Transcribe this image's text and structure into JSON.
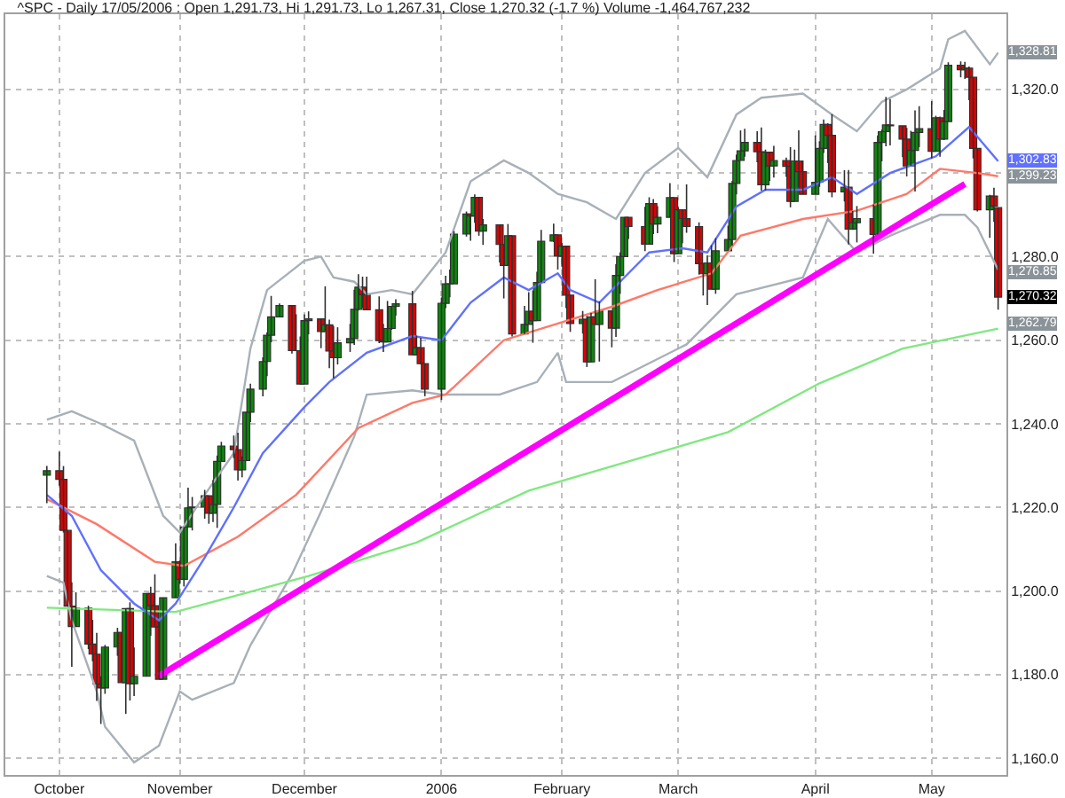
{
  "chart_data": {
    "type": "candlestick",
    "title": "^SPC - Daily 17/05/2006 : Open 1,291.73, Hi 1,291.73, Lo 1,267.31, Close 1,270.32 (-1.7 %) Volume -1,464,767,232",
    "x": [
      "2005-09-30",
      "2005-10-03",
      "2005-10-04",
      "2005-10-05",
      "2005-10-06",
      "2005-10-07",
      "2005-10-10",
      "2005-10-11",
      "2005-10-12",
      "2005-10-13",
      "2005-10-14",
      "2005-10-17",
      "2005-10-18",
      "2005-10-19",
      "2005-10-20",
      "2005-10-21",
      "2005-10-24",
      "2005-10-25",
      "2005-10-26",
      "2005-10-27",
      "2005-10-28",
      "2005-10-31",
      "2005-11-01",
      "2005-11-02",
      "2005-11-03",
      "2005-11-04",
      "2005-11-07",
      "2005-11-08",
      "2005-11-09",
      "2005-11-10",
      "2005-11-11",
      "2005-11-14",
      "2005-11-15",
      "2005-11-16",
      "2005-11-17",
      "2005-11-18",
      "2005-11-21",
      "2005-11-22",
      "2005-11-23",
      "2005-11-25",
      "2005-11-28",
      "2005-11-29",
      "2005-11-30",
      "2005-12-01",
      "2005-12-02",
      "2005-12-05",
      "2005-12-06",
      "2005-12-07",
      "2005-12-08",
      "2005-12-09",
      "2005-12-12",
      "2005-12-13",
      "2005-12-14",
      "2005-12-15",
      "2005-12-16",
      "2005-12-19",
      "2005-12-20",
      "2005-12-21",
      "2005-12-22",
      "2005-12-23",
      "2005-12-27",
      "2005-12-28",
      "2005-12-29",
      "2005-12-30",
      "2006-01-03",
      "2006-01-04",
      "2006-01-05",
      "2006-01-06",
      "2006-01-09",
      "2006-01-10",
      "2006-01-11",
      "2006-01-12",
      "2006-01-13",
      "2006-01-17",
      "2006-01-18",
      "2006-01-19",
      "2006-01-20",
      "2006-01-23",
      "2006-01-24",
      "2006-01-25",
      "2006-01-26",
      "2006-01-27",
      "2006-01-30",
      "2006-01-31",
      "2006-02-01",
      "2006-02-02",
      "2006-02-03",
      "2006-02-06",
      "2006-02-07",
      "2006-02-08",
      "2006-02-09",
      "2006-02-10",
      "2006-02-13",
      "2006-02-14",
      "2006-02-15",
      "2006-02-16",
      "2006-02-17",
      "2006-02-21",
      "2006-02-22",
      "2006-02-23",
      "2006-02-24",
      "2006-02-27",
      "2006-02-28",
      "2006-03-01",
      "2006-03-02",
      "2006-03-03",
      "2006-03-06",
      "2006-03-07",
      "2006-03-08",
      "2006-03-09",
      "2006-03-10",
      "2006-03-13",
      "2006-03-14",
      "2006-03-15",
      "2006-03-16",
      "2006-03-17",
      "2006-03-20",
      "2006-03-21",
      "2006-03-22",
      "2006-03-23",
      "2006-03-24",
      "2006-03-27",
      "2006-03-28",
      "2006-03-29",
      "2006-03-30",
      "2006-03-31",
      "2006-04-03",
      "2006-04-04",
      "2006-04-05",
      "2006-04-06",
      "2006-04-07",
      "2006-04-10",
      "2006-04-11",
      "2006-04-12",
      "2006-04-13",
      "2006-04-17",
      "2006-04-18",
      "2006-04-19",
      "2006-04-20",
      "2006-04-21",
      "2006-04-24",
      "2006-04-25",
      "2006-04-26",
      "2006-04-27",
      "2006-04-28",
      "2006-05-01",
      "2006-05-02",
      "2006-05-03",
      "2006-05-04",
      "2006-05-05",
      "2006-05-08",
      "2006-05-09",
      "2006-05-10",
      "2006-05-11",
      "2006-05-12",
      "2006-05-15",
      "2006-05-16",
      "2006-05-17"
    ],
    "ohlc": [
      [
        1227.7,
        1229.9,
        1221.0,
        1228.8
      ],
      [
        1228.8,
        1233.3,
        1225.2,
        1226.7
      ],
      [
        1226.7,
        1229.9,
        1214.0,
        1214.5
      ],
      [
        1214.5,
        1214.5,
        1196.3,
        1196.4
      ],
      [
        1196.4,
        1202.1,
        1181.9,
        1191.5
      ],
      [
        1191.5,
        1199.7,
        1191.5,
        1195.9
      ],
      [
        1195.9,
        1196.5,
        1186.1,
        1187.3
      ],
      [
        1187.3,
        1193.1,
        1183.2,
        1184.9
      ],
      [
        1184.9,
        1190.0,
        1173.7,
        1177.7
      ],
      [
        1177.7,
        1179.6,
        1168.2,
        1176.8
      ],
      [
        1176.8,
        1187.1,
        1175.4,
        1186.6
      ],
      [
        1186.6,
        1191.2,
        1184.5,
        1190.1
      ],
      [
        1190.1,
        1190.1,
        1178.1,
        1178.1
      ],
      [
        1178.1,
        1195.8,
        1170.6,
        1195.8
      ],
      [
        1195.8,
        1197.3,
        1173.8,
        1177.8
      ],
      [
        1177.8,
        1186.5,
        1174.9,
        1179.6
      ],
      [
        1179.6,
        1199.4,
        1179.6,
        1199.4
      ],
      [
        1199.4,
        1201.0,
        1189.3,
        1196.5
      ],
      [
        1196.5,
        1204.0,
        1191.4,
        1191.4
      ],
      [
        1191.4,
        1192.7,
        1178.9,
        1178.9
      ],
      [
        1178.9,
        1198.4,
        1178.9,
        1198.4
      ],
      [
        1198.4,
        1211.4,
        1198.4,
        1207.0
      ],
      [
        1207.0,
        1207.3,
        1201.7,
        1202.8
      ],
      [
        1202.8,
        1215.3,
        1201.1,
        1215.3
      ],
      [
        1215.3,
        1224.7,
        1215.3,
        1219.9
      ],
      [
        1219.9,
        1222.5,
        1214.5,
        1220.1
      ],
      [
        1220.1,
        1224.2,
        1217.3,
        1222.8
      ],
      [
        1222.8,
        1222.8,
        1216.1,
        1218.6
      ],
      [
        1218.6,
        1226.6,
        1216.5,
        1220.7
      ],
      [
        1220.7,
        1232.4,
        1215.1,
        1231.0
      ],
      [
        1231.0,
        1235.7,
        1231.0,
        1234.7
      ],
      [
        1234.7,
        1237.2,
        1231.8,
        1233.8
      ],
      [
        1233.8,
        1237.9,
        1226.4,
        1229.0
      ],
      [
        1229.0,
        1232.2,
        1227.2,
        1231.2
      ],
      [
        1231.2,
        1242.9,
        1231.2,
        1242.8
      ],
      [
        1242.8,
        1249.6,
        1240.4,
        1248.3
      ],
      [
        1248.3,
        1255.9,
        1246.6,
        1254.9
      ],
      [
        1254.9,
        1261.9,
        1251.4,
        1261.2
      ],
      [
        1261.2,
        1270.6,
        1259.5,
        1265.6
      ],
      [
        1265.6,
        1268.8,
        1265.6,
        1268.3
      ],
      [
        1268.3,
        1268.4,
        1256.8,
        1257.5
      ],
      [
        1257.5,
        1266.2,
        1257.5,
        1257.5
      ],
      [
        1257.5,
        1260.9,
        1249.4,
        1249.5
      ],
      [
        1249.5,
        1266.2,
        1249.5,
        1264.7
      ],
      [
        1264.7,
        1266.9,
        1261.4,
        1265.1
      ],
      [
        1265.1,
        1265.1,
        1258.1,
        1262.1
      ],
      [
        1262.1,
        1272.9,
        1262.1,
        1263.7
      ],
      [
        1263.7,
        1264.9,
        1253.3,
        1257.4
      ],
      [
        1257.4,
        1263.4,
        1250.9,
        1255.8
      ],
      [
        1255.8,
        1263.1,
        1254.2,
        1259.4
      ],
      [
        1259.4,
        1263.9,
        1257.2,
        1260.4
      ],
      [
        1260.4,
        1272.1,
        1258.9,
        1267.4
      ],
      [
        1267.4,
        1275.8,
        1267.1,
        1272.7
      ],
      [
        1272.7,
        1275.2,
        1267.7,
        1270.9
      ],
      [
        1270.9,
        1275.2,
        1267.3,
        1267.3
      ],
      [
        1267.3,
        1270.5,
        1259.3,
        1259.9
      ],
      [
        1259.9,
        1263.9,
        1257.2,
        1259.6
      ],
      [
        1259.6,
        1269.4,
        1259.6,
        1262.8
      ],
      [
        1262.8,
        1268.2,
        1262.5,
        1268.1
      ],
      [
        1268.1,
        1269.8,
        1265.9,
        1268.7
      ],
      [
        1268.7,
        1271.8,
        1256.5,
        1256.5
      ],
      [
        1256.5,
        1261.1,
        1256.5,
        1258.2
      ],
      [
        1258.2,
        1260.6,
        1254.2,
        1254.4
      ],
      [
        1254.4,
        1254.4,
        1246.6,
        1248.3
      ],
      [
        1248.3,
        1270.2,
        1245.7,
        1268.8
      ],
      [
        1268.8,
        1275.4,
        1267.7,
        1273.5
      ],
      [
        1273.5,
        1276.9,
        1270.3,
        1273.5
      ],
      [
        1273.5,
        1286.1,
        1273.5,
        1285.4
      ],
      [
        1285.4,
        1290.8,
        1284.8,
        1290.2
      ],
      [
        1290.2,
        1290.2,
        1283.8,
        1289.7
      ],
      [
        1289.7,
        1294.9,
        1288.1,
        1294.2
      ],
      [
        1294.2,
        1294.2,
        1285.0,
        1286.1
      ],
      [
        1286.1,
        1289.0,
        1282.8,
        1287.6
      ],
      [
        1287.6,
        1287.6,
        1278.6,
        1282.9
      ],
      [
        1282.9,
        1282.9,
        1270.0,
        1277.9
      ],
      [
        1277.9,
        1287.8,
        1277.9,
        1285.0
      ],
      [
        1285.0,
        1285.0,
        1260.9,
        1261.5
      ],
      [
        1261.5,
        1268.2,
        1261.5,
        1263.8
      ],
      [
        1263.8,
        1271.5,
        1263.8,
        1266.9
      ],
      [
        1266.9,
        1271.9,
        1259.4,
        1264.7
      ],
      [
        1264.7,
        1276.4,
        1264.7,
        1273.8
      ],
      [
        1273.8,
        1286.4,
        1273.8,
        1283.7
      ],
      [
        1283.7,
        1287.9,
        1283.5,
        1285.2
      ],
      [
        1285.2,
        1285.2,
        1276.9,
        1280.1
      ],
      [
        1280.1,
        1283.3,
        1277.6,
        1282.5
      ],
      [
        1282.5,
        1282.5,
        1267.7,
        1270.8
      ],
      [
        1270.8,
        1270.8,
        1262.0,
        1264.0
      ],
      [
        1264.0,
        1267.0,
        1261.6,
        1265.0
      ],
      [
        1265.0,
        1265.8,
        1253.6,
        1254.8
      ],
      [
        1254.8,
        1266.5,
        1254.8,
        1265.6
      ],
      [
        1265.6,
        1274.6,
        1263.8,
        1263.8
      ],
      [
        1263.8,
        1269.3,
        1254.9,
        1267.0
      ],
      [
        1267.0,
        1267.0,
        1258.3,
        1262.9
      ],
      [
        1262.9,
        1278.2,
        1260.8,
        1275.5
      ],
      [
        1275.5,
        1281.0,
        1271.1,
        1280.0
      ],
      [
        1280.0,
        1289.4,
        1280.0,
        1289.4
      ],
      [
        1289.4,
        1289.5,
        1284.2,
        1287.2
      ],
      [
        1287.2,
        1291.9,
        1281.3,
        1283.0
      ],
      [
        1283.0,
        1294.2,
        1283.0,
        1292.7
      ],
      [
        1292.7,
        1293.8,
        1285.4,
        1287.8
      ],
      [
        1287.8,
        1292.1,
        1285.6,
        1289.4
      ],
      [
        1289.4,
        1297.6,
        1289.4,
        1294.1
      ],
      [
        1294.1,
        1294.1,
        1278.7,
        1280.7
      ],
      [
        1280.7,
        1291.8,
        1280.7,
        1291.2
      ],
      [
        1291.2,
        1291.2,
        1283.2,
        1289.1
      ],
      [
        1289.1,
        1297.3,
        1285.7,
        1287.2
      ],
      [
        1287.2,
        1288.2,
        1275.7,
        1278.3
      ],
      [
        1278.3,
        1278.3,
        1270.7,
        1275.9
      ],
      [
        1275.9,
        1280.3,
        1268.4,
        1278.5
      ],
      [
        1278.5,
        1282.7,
        1272.2,
        1272.2
      ],
      [
        1272.2,
        1284.4,
        1271.1,
        1281.4
      ],
      [
        1281.4,
        1287.4,
        1281.4,
        1284.1
      ],
      [
        1284.1,
        1298.1,
        1282.7,
        1297.5
      ],
      [
        1297.5,
        1304.4,
        1294.9,
        1303.0
      ],
      [
        1303.0,
        1310.2,
        1303.0,
        1305.3
      ],
      [
        1305.3,
        1310.6,
        1303.9,
        1307.3
      ],
      [
        1307.3,
        1310.0,
        1302.6,
        1305.1
      ],
      [
        1305.1,
        1310.9,
        1295.8,
        1297.2
      ],
      [
        1297.2,
        1305.6,
        1295.8,
        1305.0
      ],
      [
        1305.0,
        1305.0,
        1298.1,
        1301.7
      ],
      [
        1301.7,
        1306.5,
        1298.9,
        1303.0
      ],
      [
        1303.0,
        1303.7,
        1299.1,
        1301.6
      ],
      [
        1301.6,
        1306.2,
        1291.8,
        1293.2
      ],
      [
        1293.2,
        1305.6,
        1293.2,
        1302.9
      ],
      [
        1302.9,
        1310.2,
        1296.7,
        1300.3
      ],
      [
        1300.3,
        1303.0,
        1294.9,
        1294.9
      ],
      [
        1294.9,
        1309.0,
        1294.9,
        1297.8
      ],
      [
        1297.8,
        1307.6,
        1296.7,
        1305.9
      ],
      [
        1305.9,
        1312.8,
        1304.8,
        1311.6
      ],
      [
        1311.6,
        1311.9,
        1302.4,
        1309.0
      ],
      [
        1309.0,
        1314.1,
        1294.2,
        1295.5
      ],
      [
        1295.5,
        1300.7,
        1293.2,
        1296.6
      ],
      [
        1296.6,
        1300.7,
        1282.9,
        1286.6
      ],
      [
        1286.6,
        1290.9,
        1286.4,
        1288.1
      ],
      [
        1288.1,
        1292.1,
        1283.4,
        1289.1
      ],
      [
        1289.1,
        1292.5,
        1280.7,
        1285.3
      ],
      [
        1285.3,
        1309.0,
        1285.3,
        1307.3
      ],
      [
        1307.3,
        1310.4,
        1302.8,
        1309.9
      ],
      [
        1309.9,
        1318.2,
        1306.4,
        1311.5
      ],
      [
        1311.5,
        1317.7,
        1306.6,
        1311.3
      ],
      [
        1311.3,
        1311.3,
        1303.8,
        1308.1
      ],
      [
        1308.1,
        1310.8,
        1299.2,
        1301.7
      ],
      [
        1301.7,
        1310.1,
        1301.7,
        1305.4
      ],
      [
        1305.4,
        1315.0,
        1295.6,
        1309.7
      ],
      [
        1309.7,
        1316.0,
        1306.2,
        1310.6
      ],
      [
        1310.6,
        1317.2,
        1303.5,
        1305.2
      ],
      [
        1305.2,
        1313.7,
        1305.2,
        1313.2
      ],
      [
        1313.2,
        1313.5,
        1303.9,
        1308.1
      ],
      [
        1308.1,
        1315.1,
        1307.9,
        1312.3
      ],
      [
        1312.3,
        1326.5,
        1312.3,
        1325.8
      ],
      [
        1325.8,
        1326.7,
        1322.9,
        1324.7
      ],
      [
        1324.7,
        1326.6,
        1322.5,
        1325.1
      ],
      [
        1325.1,
        1325.5,
        1317.4,
        1322.9
      ],
      [
        1322.9,
        1322.9,
        1303.5,
        1305.9
      ],
      [
        1305.9,
        1305.9,
        1290.8,
        1291.2
      ],
      [
        1291.2,
        1294.8,
        1284.5,
        1294.5
      ],
      [
        1294.5,
        1296.5,
        1288.3,
        1292.1
      ],
      [
        1291.73,
        1291.73,
        1267.31,
        1270.32
      ]
    ],
    "series": [
      {
        "type": "line",
        "color": "#a8b0b8",
        "x": [
          "2005-09-30",
          "2005-10-06",
          "2005-10-13",
          "2005-10-21",
          "2005-10-28",
          "2005-11-01",
          "2005-11-07",
          "2005-11-14",
          "2005-11-18",
          "2005-11-22",
          "2005-12-01",
          "2005-12-05",
          "2005-12-08",
          "2005-12-13",
          "2005-12-16",
          "2005-12-22",
          "2005-12-27",
          "2006-01-04",
          "2006-01-10",
          "2006-01-18",
          "2006-01-24",
          "2006-01-31",
          "2006-02-07",
          "2006-02-14",
          "2006-02-21",
          "2006-03-01",
          "2006-03-08",
          "2006-03-15",
          "2006-03-21",
          "2006-03-31",
          "2006-04-07",
          "2006-04-13",
          "2006-04-19",
          "2006-04-25",
          "2006-05-03",
          "2006-05-05",
          "2006-05-09",
          "2006-05-15",
          "2006-05-17"
        ],
        "values": [
          1241,
          1243,
          1240,
          1236,
          1218,
          1214,
          1223,
          1233,
          1258,
          1272,
          1279,
          1280,
          1275,
          1274,
          1271,
          1272,
          1271,
          1281,
          1298,
          1303,
          1300,
          1295,
          1293,
          1289,
          1300,
          1306,
          1299,
          1314,
          1318,
          1319,
          1314,
          1310,
          1317,
          1320,
          1325,
          1332,
          1334,
          1326,
          1328.81
        ],
        "value_labels": [
          null,
          null,
          null,
          null,
          null,
          null,
          null,
          null,
          null,
          null,
          null,
          null,
          null,
          null,
          null,
          null,
          null,
          null,
          null,
          null,
          null,
          null,
          null,
          null,
          null,
          null,
          null,
          null,
          null,
          null,
          null,
          null,
          null,
          null,
          null,
          null,
          null,
          null,
          "1,328.81"
        ]
      },
      {
        "type": "line",
        "color": "#a8b0b8",
        "x": [
          "2005-09-30",
          "2005-10-04",
          "2005-10-06",
          "2005-10-12",
          "2005-10-14",
          "2005-10-21",
          "2005-10-27",
          "2005-11-01",
          "2005-11-04",
          "2005-11-14",
          "2005-11-18",
          "2005-11-28",
          "2005-12-05",
          "2005-12-13",
          "2005-12-16",
          "2005-12-27",
          "2006-01-03",
          "2006-01-17",
          "2006-01-26",
          "2006-01-31",
          "2006-02-02",
          "2006-02-13",
          "2006-02-21",
          "2006-03-03",
          "2006-03-15",
          "2006-03-31",
          "2006-04-06",
          "2006-04-13",
          "2006-04-21",
          "2006-05-03",
          "2006-05-09",
          "2006-05-12",
          "2006-05-17"
        ],
        "values": [
          1203.6,
          1202,
          1193,
          1176,
          1167.5,
          1159,
          1163,
          1176,
          1174,
          1178,
          1187,
          1204,
          1219,
          1237,
          1247,
          1248,
          1247,
          1247,
          1250,
          1257,
          1250,
          1250,
          1254,
          1259,
          1271,
          1275,
          1289,
          1281,
          1285,
          1290,
          1290,
          1287,
          1276.85
        ],
        "value_labels": [
          null,
          null,
          null,
          null,
          null,
          null,
          null,
          null,
          null,
          null,
          null,
          null,
          null,
          null,
          null,
          null,
          null,
          null,
          null,
          null,
          null,
          null,
          null,
          null,
          null,
          null,
          null,
          null,
          null,
          null,
          null,
          null,
          "1,276.85"
        ]
      },
      {
        "type": "line",
        "color": "#80e880",
        "x": [
          "2005-09-30",
          "2005-10-31",
          "2005-12-02",
          "2005-12-28",
          "2006-01-24",
          "2006-03-13",
          "2006-04-04",
          "2006-04-24",
          "2006-05-17"
        ],
        "values": [
          1196,
          1195,
          1203.6,
          1211.6,
          1224,
          1238,
          1249.7,
          1258,
          1262.79
        ],
        "value_labels": [
          null,
          null,
          null,
          null,
          null,
          null,
          null,
          null,
          "1,262.79"
        ]
      },
      {
        "type": "line",
        "color": "#ff7868",
        "x": [
          "2005-09-30",
          "2005-10-12",
          "2005-10-26",
          "2005-11-02",
          "2005-11-15",
          "2005-11-29",
          "2005-12-14",
          "2005-12-27",
          "2006-01-04",
          "2006-01-18",
          "2006-01-31",
          "2006-02-13",
          "2006-02-24",
          "2006-03-09",
          "2006-03-16",
          "2006-03-31",
          "2006-04-13",
          "2006-04-25",
          "2006-05-03",
          "2006-05-12",
          "2006-05-17"
        ],
        "values": [
          1222,
          1216,
          1207,
          1206,
          1213,
          1223,
          1239,
          1245,
          1247,
          1260,
          1264,
          1268,
          1272,
          1276,
          1285,
          1289,
          1291,
          1295,
          1301,
          1300,
          1299.23
        ],
        "value_labels": [
          null,
          null,
          null,
          null,
          null,
          null,
          null,
          null,
          null,
          null,
          null,
          null,
          null,
          null,
          null,
          null,
          null,
          null,
          null,
          null,
          "1,299.23"
        ]
      },
      {
        "type": "line",
        "color": "#6070ff",
        "x": [
          "2005-09-30",
          "2005-10-06",
          "2005-10-13",
          "2005-10-21",
          "2005-10-27",
          "2005-10-31",
          "2005-11-07",
          "2005-11-14",
          "2005-11-21",
          "2005-12-01",
          "2005-12-07",
          "2005-12-16",
          "2005-12-27",
          "2006-01-03",
          "2006-01-10",
          "2006-01-18",
          "2006-01-24",
          "2006-01-31",
          "2006-02-03",
          "2006-02-10",
          "2006-02-16",
          "2006-02-22",
          "2006-03-02",
          "2006-03-08",
          "2006-03-15",
          "2006-03-22",
          "2006-03-31",
          "2006-04-07",
          "2006-04-13",
          "2006-04-21",
          "2006-05-02",
          "2006-05-10",
          "2006-05-17"
        ],
        "values": [
          1223,
          1218,
          1205,
          1197,
          1193,
          1197,
          1208,
          1220,
          1233,
          1244,
          1250,
          1257,
          1261,
          1260,
          1269,
          1275,
          1272,
          1276,
          1272,
          1269,
          1275,
          1281,
          1282,
          1281,
          1292,
          1296,
          1296,
          1299,
          1295,
          1300,
          1304,
          1311,
          1302.83
        ],
        "value_labels": [
          null,
          null,
          null,
          null,
          null,
          null,
          null,
          null,
          null,
          null,
          null,
          null,
          null,
          null,
          null,
          null,
          null,
          null,
          null,
          null,
          null,
          null,
          null,
          null,
          null,
          null,
          null,
          null,
          null,
          null,
          null,
          null,
          "1,302.83"
        ]
      },
      {
        "type": "line",
        "color": "#ff00ff",
        "x": [
          "2005-10-27",
          "2006-05-09"
        ],
        "values": [
          1179.7,
          1297.4
        ]
      }
    ],
    "annotations": [
      "1,270.32"
    ],
    "xlim": [
      "2005-09-20",
      "2006-05-19"
    ],
    "xticks": [
      {
        "value": "2005-10-03",
        "label": "October"
      },
      {
        "value": "2005-11-01",
        "label": "November"
      },
      {
        "value": "2005-12-01",
        "label": "December"
      },
      {
        "value": "2006-01-03",
        "label": "2006"
      },
      {
        "value": "2006-02-01",
        "label": "February"
      },
      {
        "value": "2006-03-01",
        "label": "March"
      },
      {
        "value": "2006-04-03",
        "label": "April"
      },
      {
        "value": "2006-05-01",
        "label": "May"
      }
    ],
    "ylim": [
      1156,
      1338
    ],
    "yticks": [
      {
        "value": 1160,
        "label": "1,160.0"
      },
      {
        "value": 1180,
        "label": "1,180.0"
      },
      {
        "value": 1200,
        "label": "1,200.0"
      },
      {
        "value": 1220,
        "label": "1,220.0"
      },
      {
        "value": 1240,
        "label": "1,240.0"
      },
      {
        "value": 1260,
        "label": "1,260.0"
      },
      {
        "value": 1280,
        "label": "1,280.0"
      },
      {
        "value": 1300,
        "label": null
      },
      {
        "value": 1320,
        "label": "1,320.0"
      }
    ],
    "grid": true
  }
}
